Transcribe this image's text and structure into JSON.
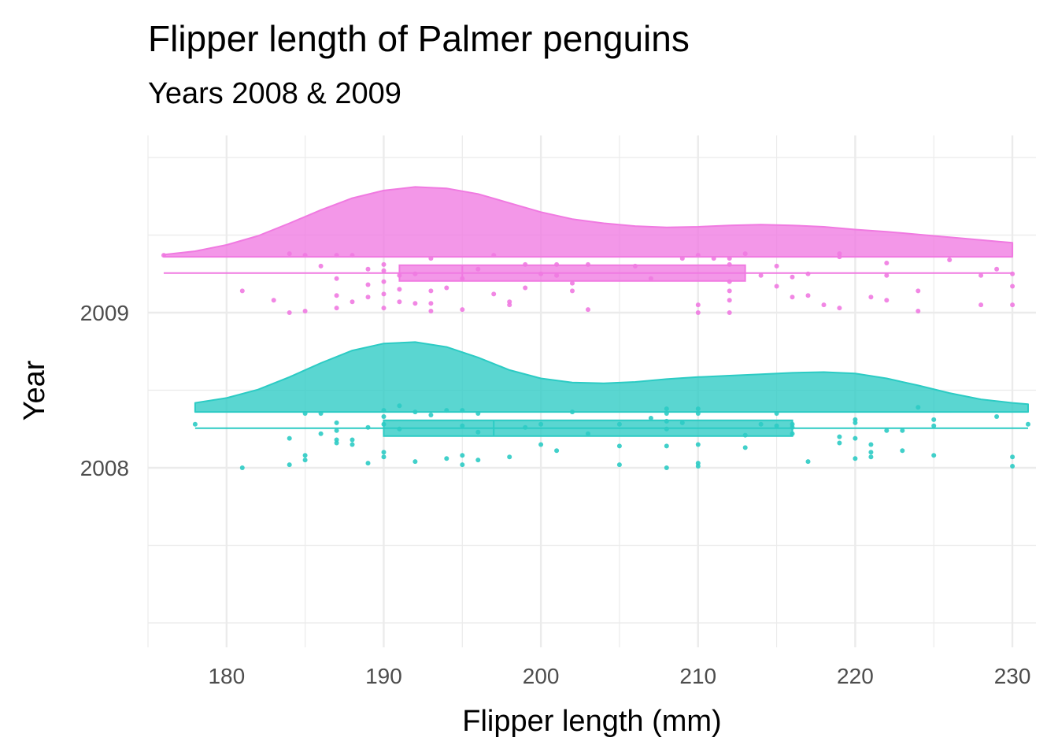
{
  "title": "Flipper length of Palmer penguins",
  "subtitle": "Years 2008 & 2009",
  "chart_data": {
    "type": "raincloud",
    "title": "Flipper length of Palmer penguins",
    "subtitle": "Years 2008 & 2009",
    "xlabel": "Flipper length (mm)",
    "ylabel": "Year",
    "xlim": [
      175,
      231.5
    ],
    "x_ticks": [
      180,
      190,
      200,
      210,
      220,
      230
    ],
    "x_tick_labels": [
      "180",
      "190",
      "200",
      "210",
      "220",
      "230"
    ],
    "y_categories": [
      "2008",
      "2009"
    ],
    "grid": true,
    "legend": "none",
    "series": [
      {
        "category": "2008",
        "color": "#2ccbc4",
        "box": {
          "min": 178,
          "q1": 190,
          "median": 197,
          "q3": 216,
          "max": 231
        },
        "density": {
          "x": [
            178,
            180,
            182,
            184,
            186,
            188,
            190,
            192,
            194,
            196,
            198,
            200,
            202,
            204,
            206,
            208,
            210,
            212,
            214,
            216,
            218,
            220,
            222,
            224,
            226,
            228,
            230,
            231
          ],
          "y": [
            0.13,
            0.2,
            0.32,
            0.5,
            0.7,
            0.88,
            0.98,
            1.0,
            0.93,
            0.78,
            0.6,
            0.48,
            0.42,
            0.41,
            0.43,
            0.47,
            0.5,
            0.52,
            0.54,
            0.56,
            0.57,
            0.55,
            0.48,
            0.38,
            0.27,
            0.18,
            0.13,
            0.11
          ]
        },
        "points": [
          [
            178,
            0.28
          ],
          [
            181,
            0.0
          ],
          [
            184,
            0.02
          ],
          [
            184,
            0.19
          ],
          [
            185,
            0.05
          ],
          [
            185,
            0.08
          ],
          [
            185,
            0.35
          ],
          [
            186,
            0.22
          ],
          [
            186,
            0.35
          ],
          [
            187,
            0.29
          ],
          [
            187,
            0.24
          ],
          [
            187,
            0.18
          ],
          [
            187,
            0.16
          ],
          [
            188,
            0.18
          ],
          [
            188,
            0.15
          ],
          [
            189,
            0.26
          ],
          [
            189,
            0.03
          ],
          [
            190,
            0.07
          ],
          [
            190,
            0.1
          ],
          [
            190,
            0.28
          ],
          [
            190,
            0.37
          ],
          [
            190,
            0.33
          ],
          [
            191,
            0.4
          ],
          [
            191,
            0.25
          ],
          [
            192,
            0.36
          ],
          [
            192,
            0.04
          ],
          [
            193,
            0.34
          ],
          [
            194,
            0.06
          ],
          [
            194,
            0.37
          ],
          [
            195,
            0.02
          ],
          [
            195,
            0.08
          ],
          [
            195,
            0.27
          ],
          [
            195,
            0.37
          ],
          [
            196,
            0.05
          ],
          [
            196,
            0.23
          ],
          [
            196,
            0.35
          ],
          [
            198,
            0.07
          ],
          [
            199,
            0.26
          ],
          [
            200,
            0.28
          ],
          [
            200,
            0.15
          ],
          [
            201,
            0.11
          ],
          [
            202,
            0.36
          ],
          [
            203,
            0.22
          ],
          [
            205,
            0.28
          ],
          [
            205,
            0.14
          ],
          [
            205,
            0.02
          ],
          [
            207,
            0.32
          ],
          [
            208,
            0.38
          ],
          [
            208,
            0.35
          ],
          [
            208,
            0.3
          ],
          [
            208,
            0.25
          ],
          [
            208,
            0.14
          ],
          [
            208,
            0.0
          ],
          [
            209,
            0.29
          ],
          [
            210,
            0.38
          ],
          [
            210,
            0.35
          ],
          [
            210,
            0.15
          ],
          [
            210,
            0.03
          ],
          [
            210,
            0.01
          ],
          [
            213,
            0.21
          ],
          [
            213,
            0.13
          ],
          [
            214,
            0.28
          ],
          [
            215,
            0.35
          ],
          [
            215,
            0.27
          ],
          [
            216,
            0.26
          ],
          [
            216,
            0.22
          ],
          [
            216,
            0.28
          ],
          [
            217,
            0.04
          ],
          [
            219,
            0.2
          ],
          [
            219,
            0.16
          ],
          [
            220,
            0.31
          ],
          [
            220,
            0.29
          ],
          [
            220,
            0.19
          ],
          [
            220,
            0.06
          ],
          [
            221,
            0.15
          ],
          [
            221,
            0.1
          ],
          [
            221,
            0.07
          ],
          [
            222,
            0.24
          ],
          [
            223,
            0.24
          ],
          [
            223,
            0.11
          ],
          [
            224,
            0.39
          ],
          [
            225,
            0.31
          ],
          [
            225,
            0.27
          ],
          [
            225,
            0.08
          ],
          [
            229,
            0.33
          ],
          [
            230,
            0.07
          ],
          [
            230,
            0.01
          ],
          [
            231,
            0.28
          ]
        ]
      },
      {
        "category": "2009",
        "color": "#f07ae1",
        "box": {
          "min": 176,
          "q1": 191,
          "median": 195,
          "q3": 213,
          "max": 230
        },
        "density": {
          "x": [
            176,
            178,
            180,
            182,
            184,
            186,
            188,
            190,
            192,
            194,
            196,
            198,
            200,
            202,
            204,
            206,
            208,
            210,
            212,
            214,
            216,
            218,
            220,
            222,
            224,
            226,
            228,
            230
          ],
          "y": [
            0.03,
            0.08,
            0.17,
            0.3,
            0.48,
            0.67,
            0.84,
            0.95,
            1.0,
            0.98,
            0.9,
            0.77,
            0.64,
            0.54,
            0.48,
            0.44,
            0.42,
            0.43,
            0.45,
            0.46,
            0.45,
            0.43,
            0.39,
            0.36,
            0.32,
            0.28,
            0.24,
            0.2
          ]
        },
        "points": [
          [
            176,
            0.37
          ],
          [
            181,
            0.14
          ],
          [
            183,
            0.08
          ],
          [
            184,
            0.38
          ],
          [
            184,
            0.0
          ],
          [
            185,
            0.37
          ],
          [
            185,
            0.01
          ],
          [
            186,
            0.3
          ],
          [
            187,
            0.37
          ],
          [
            187,
            0.22
          ],
          [
            187,
            0.11
          ],
          [
            187,
            0.03
          ],
          [
            188,
            0.37
          ],
          [
            188,
            0.07
          ],
          [
            189,
            0.28
          ],
          [
            189,
            0.1
          ],
          [
            189,
            0.18
          ],
          [
            190,
            0.31
          ],
          [
            190,
            0.27
          ],
          [
            190,
            0.2
          ],
          [
            190,
            0.12
          ],
          [
            190,
            0.03
          ],
          [
            191,
            0.24
          ],
          [
            191,
            0.15
          ],
          [
            191,
            0.07
          ],
          [
            192,
            0.06
          ],
          [
            192,
            0.25
          ],
          [
            193,
            0.35
          ],
          [
            193,
            0.14
          ],
          [
            193,
            0.06
          ],
          [
            193,
            0.01
          ],
          [
            194,
            0.16
          ],
          [
            195,
            0.22
          ],
          [
            195,
            0.02
          ],
          [
            196,
            0.28
          ],
          [
            197,
            0.37
          ],
          [
            197,
            0.12
          ],
          [
            198,
            0.05
          ],
          [
            198,
            0.07
          ],
          [
            199,
            0.16
          ],
          [
            199,
            0.31
          ],
          [
            200,
            0.25
          ],
          [
            201,
            0.31
          ],
          [
            201,
            0.24
          ],
          [
            202,
            0.19
          ],
          [
            202,
            0.14
          ],
          [
            203,
            0.31
          ],
          [
            203,
            0.02
          ],
          [
            206,
            0.3
          ],
          [
            207,
            0.22
          ],
          [
            209,
            0.35
          ],
          [
            210,
            0.37
          ],
          [
            210,
            0.05
          ],
          [
            210,
            0.0
          ],
          [
            211,
            0.35
          ],
          [
            212,
            0.35
          ],
          [
            212,
            0.31
          ],
          [
            212,
            0.2
          ],
          [
            212,
            0.14
          ],
          [
            212,
            0.08
          ],
          [
            212,
            0.0
          ],
          [
            213,
            0.38
          ],
          [
            214,
            0.24
          ],
          [
            215,
            0.3
          ],
          [
            215,
            0.17
          ],
          [
            216,
            0.23
          ],
          [
            216,
            0.1
          ],
          [
            217,
            0.25
          ],
          [
            217,
            0.11
          ],
          [
            218,
            0.05
          ],
          [
            219,
            0.36
          ],
          [
            219,
            0.38
          ],
          [
            219,
            0.03
          ],
          [
            221,
            0.1
          ],
          [
            222,
            0.32
          ],
          [
            222,
            0.24
          ],
          [
            222,
            0.08
          ],
          [
            224,
            0.01
          ],
          [
            224,
            0.14
          ],
          [
            226,
            0.34
          ],
          [
            228,
            0.24
          ],
          [
            228,
            0.05
          ],
          [
            229,
            0.28
          ],
          [
            230,
            0.25
          ],
          [
            230,
            0.17
          ],
          [
            230,
            0.05
          ]
        ]
      }
    ]
  }
}
